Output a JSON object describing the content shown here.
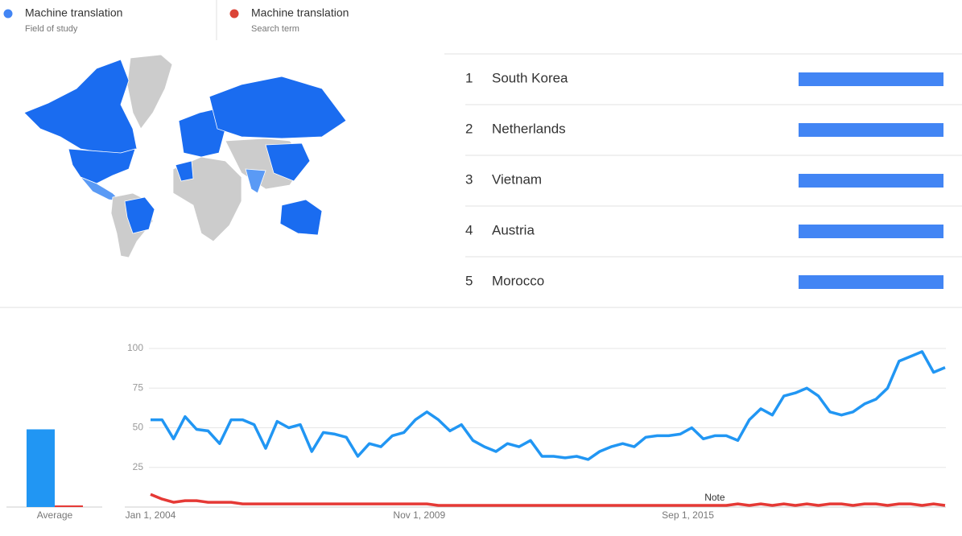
{
  "legend": [
    {
      "name": "Machine translation",
      "subtitle": "Field of study",
      "color": "#4285f4"
    },
    {
      "name": "Machine translation",
      "subtitle": "Search term",
      "color": "#db4437"
    }
  ],
  "ranking": {
    "color": "#4285f4",
    "xlim": [
      0,
      100
    ],
    "rows": [
      {
        "rank": 1,
        "name": "South Korea",
        "value": 100
      },
      {
        "rank": 2,
        "name": "Netherlands",
        "value": 100
      },
      {
        "rank": 3,
        "name": "Vietnam",
        "value": 100
      },
      {
        "rank": 4,
        "name": "Austria",
        "value": 100
      },
      {
        "rank": 5,
        "name": "Morocco",
        "value": 100
      }
    ]
  },
  "chart_data": [
    {
      "type": "bar",
      "categories": [
        "Average"
      ],
      "ylim": [
        0,
        100
      ],
      "series": [
        {
          "color": "#2196f3",
          "values": [
            49
          ]
        },
        {
          "color": "#e53935",
          "values": [
            1
          ]
        }
      ]
    },
    {
      "type": "line",
      "grid": true,
      "ylim": [
        0,
        100
      ],
      "yticks": [
        25,
        50,
        75,
        100
      ],
      "xlim": [
        "2004-01",
        "2021-04"
      ],
      "xticks": [
        {
          "value": "2004-01",
          "label": "Jan 1, 2004"
        },
        {
          "value": "2009-11",
          "label": "Nov 1, 2009"
        },
        {
          "value": "2015-09",
          "label": "Sep 1, 2015"
        }
      ],
      "annotation": {
        "x": "2016-04",
        "label": "Note"
      },
      "x": [
        "2004-01",
        "2004-04",
        "2004-07",
        "2004-10",
        "2005-01",
        "2005-04",
        "2005-07",
        "2005-10",
        "2006-01",
        "2006-04",
        "2006-07",
        "2006-10",
        "2007-01",
        "2007-04",
        "2007-07",
        "2007-10",
        "2008-01",
        "2008-04",
        "2008-07",
        "2008-10",
        "2009-01",
        "2009-04",
        "2009-07",
        "2009-10",
        "2010-01",
        "2010-04",
        "2010-07",
        "2010-10",
        "2011-01",
        "2011-04",
        "2011-07",
        "2011-10",
        "2012-01",
        "2012-04",
        "2012-07",
        "2012-10",
        "2013-01",
        "2013-04",
        "2013-07",
        "2013-10",
        "2014-01",
        "2014-04",
        "2014-07",
        "2014-10",
        "2015-01",
        "2015-04",
        "2015-07",
        "2015-10",
        "2016-01",
        "2016-04",
        "2016-07",
        "2016-10",
        "2017-01",
        "2017-04",
        "2017-07",
        "2017-10",
        "2018-01",
        "2018-04",
        "2018-07",
        "2018-10",
        "2019-01",
        "2019-04",
        "2019-07",
        "2019-10",
        "2020-01",
        "2020-04",
        "2020-07",
        "2020-10",
        "2021-01",
        "2021-04"
      ],
      "series": [
        {
          "color": "#2196f3",
          "values": [
            55,
            55,
            43,
            57,
            49,
            48,
            40,
            55,
            55,
            52,
            37,
            54,
            50,
            52,
            35,
            47,
            46,
            44,
            32,
            40,
            38,
            45,
            47,
            55,
            60,
            55,
            48,
            52,
            42,
            38,
            35,
            40,
            38,
            42,
            32,
            32,
            31,
            32,
            30,
            35,
            38,
            40,
            38,
            44,
            45,
            45,
            46,
            50,
            43,
            45,
            45,
            42,
            55,
            62,
            58,
            70,
            72,
            75,
            70,
            60,
            58,
            60,
            65,
            68,
            75,
            92,
            95,
            98,
            85,
            88
          ]
        },
        {
          "color": "#e53935",
          "values": [
            8,
            5,
            3,
            4,
            4,
            3,
            3,
            3,
            2,
            2,
            2,
            2,
            2,
            2,
            2,
            2,
            2,
            2,
            2,
            2,
            2,
            2,
            2,
            2,
            2,
            1,
            1,
            1,
            1,
            1,
            1,
            1,
            1,
            1,
            1,
            1,
            1,
            1,
            1,
            1,
            1,
            1,
            1,
            1,
            1,
            1,
            1,
            1,
            1,
            1,
            1,
            2,
            1,
            2,
            1,
            2,
            1,
            2,
            1,
            2,
            2,
            1,
            2,
            2,
            1,
            2,
            2,
            1,
            2,
            1
          ]
        }
      ]
    }
  ]
}
